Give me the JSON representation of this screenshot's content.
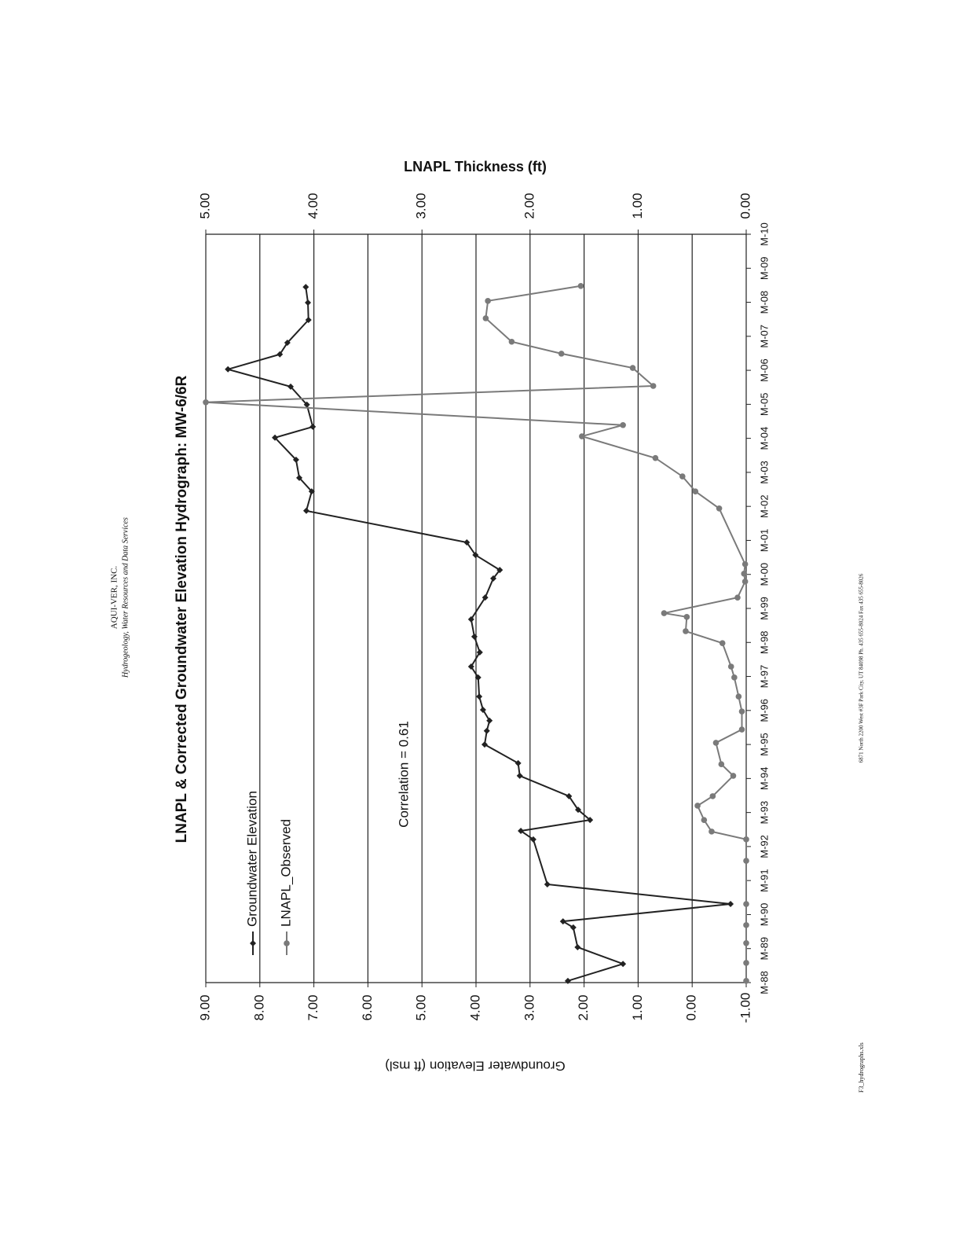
{
  "header": {
    "company": "AQUI-VER, INC.",
    "tagline": "Hydrogeology, Water Resources and Data Services"
  },
  "footer": {
    "address": "6871 North 2200 West #3F Park City, UT 84098   Ph. 435 655-8024   Fax 435 655-8026",
    "filename": "F3_hydrographs.xls"
  },
  "chart_data": {
    "type": "line",
    "title": "LNAPL & Corrected Groundwater Elevation Hydrograph: MW-6/6R",
    "y_label": "Groundwater Elevation (ft msl)",
    "y2_label": "LNAPL Thickness (ft)",
    "annotations": [
      "Correlation = 0.61"
    ],
    "xlim": [
      1988,
      2010
    ],
    "xticks": [
      {
        "value": 1988,
        "label": "M-88"
      },
      {
        "value": 1989,
        "label": "M-89"
      },
      {
        "value": 1990,
        "label": "M-90"
      },
      {
        "value": 1991,
        "label": "M-91"
      },
      {
        "value": 1992,
        "label": "M-92"
      },
      {
        "value": 1993,
        "label": "M-93"
      },
      {
        "value": 1994,
        "label": "M-94"
      },
      {
        "value": 1995,
        "label": "M-95"
      },
      {
        "value": 1996,
        "label": "M-96"
      },
      {
        "value": 1997,
        "label": "M-97"
      },
      {
        "value": 1998,
        "label": "M-98"
      },
      {
        "value": 1999,
        "label": "M-99"
      },
      {
        "value": 2000,
        "label": "M-00"
      },
      {
        "value": 2001,
        "label": "M-01"
      },
      {
        "value": 2002,
        "label": "M-02"
      },
      {
        "value": 2003,
        "label": "M-03"
      },
      {
        "value": 2004,
        "label": "M-04"
      },
      {
        "value": 2005,
        "label": "M-05"
      },
      {
        "value": 2006,
        "label": "M-06"
      },
      {
        "value": 2007,
        "label": "M-07"
      },
      {
        "value": 2008,
        "label": "M-08"
      },
      {
        "value": 2009,
        "label": "M-09"
      },
      {
        "value": 2010,
        "label": "M-10"
      }
    ],
    "ylim": [
      -1,
      9
    ],
    "yticks": [
      {
        "value": -1,
        "label": "-1.00"
      },
      {
        "value": 0,
        "label": "0.00"
      },
      {
        "value": 1,
        "label": "1.00"
      },
      {
        "value": 2,
        "label": "2.00"
      },
      {
        "value": 3,
        "label": "3.00"
      },
      {
        "value": 4,
        "label": "4.00"
      },
      {
        "value": 5,
        "label": "5.00"
      },
      {
        "value": 6,
        "label": "6.00"
      },
      {
        "value": 7,
        "label": "7.00"
      },
      {
        "value": 8,
        "label": "8.00"
      },
      {
        "value": 9,
        "label": "9.00"
      }
    ],
    "y2lim": [
      0,
      5
    ],
    "y2ticks": [
      {
        "value": 0,
        "label": "0.00"
      },
      {
        "value": 1,
        "label": "1.00"
      },
      {
        "value": 2,
        "label": "2.00"
      },
      {
        "value": 3,
        "label": "3.00"
      },
      {
        "value": 4,
        "label": "4.00"
      },
      {
        "value": 5,
        "label": "5.00"
      }
    ],
    "grid": true,
    "series": [
      {
        "name": "Groundwater Elevation",
        "color": "#222222",
        "marker": "diamond",
        "x": [
          1988.05,
          1988.55,
          1989.04,
          1989.62,
          1989.8,
          1990.31,
          1990.89,
          1992.21,
          1992.46,
          1992.78,
          1993.08,
          1993.48,
          1994.08,
          1994.45,
          1995.0,
          1995.4,
          1995.7,
          1996.02,
          1996.41,
          1996.97,
          1997.29,
          1997.71,
          1998.17,
          1998.68,
          1999.32,
          1999.88,
          2000.13,
          2000.57,
          2000.94,
          2001.87,
          2002.44,
          2002.84,
          2003.37,
          2004.02,
          2004.34,
          2004.99,
          2005.52,
          2006.03,
          2006.47,
          2006.81,
          2007.48,
          2007.99,
          2008.45
        ],
        "values": [
          2.3,
          1.28,
          2.12,
          2.2,
          2.39,
          -0.71,
          2.68,
          2.94,
          3.17,
          1.89,
          2.11,
          2.28,
          3.19,
          3.22,
          3.84,
          3.8,
          3.75,
          3.87,
          3.94,
          3.96,
          4.09,
          3.93,
          4.03,
          4.09,
          3.83,
          3.68,
          3.56,
          4.01,
          4.17,
          7.14,
          7.04,
          7.27,
          7.33,
          7.72,
          7.02,
          7.13,
          7.43,
          8.59,
          7.63,
          7.49,
          7.1,
          7.11,
          7.15
        ]
      },
      {
        "name": "LNAPL_Observed",
        "color": "#7a7a7a",
        "marker": "circle",
        "axis": "y2",
        "x": [
          1988.05,
          1988.58,
          1989.16,
          1989.69,
          1990.31,
          1991.58,
          1992.21,
          1992.44,
          1992.78,
          1993.2,
          1993.48,
          1994.08,
          1994.42,
          1995.05,
          1995.44,
          1995.97,
          1996.41,
          1996.97,
          1997.29,
          1997.98,
          1998.33,
          1998.75,
          1998.86,
          1999.32,
          1999.79,
          2000.02,
          2000.3,
          2001.94,
          2002.44,
          2002.88,
          2003.42,
          2004.06,
          2004.39,
          2005.06,
          2005.54,
          2006.07,
          2006.49,
          2006.84,
          2007.53,
          2008.04,
          2008.48
        ],
        "values": [
          0,
          0,
          0,
          0,
          0,
          0,
          0,
          0.32,
          0.39,
          0.45,
          0.31,
          0.12,
          0.23,
          0.28,
          0.04,
          0.04,
          0.07,
          0.11,
          0.14,
          0.22,
          0.56,
          0.55,
          0.76,
          0.08,
          0.01,
          0.02,
          0.01,
          0.25,
          0.47,
          0.59,
          0.84,
          1.52,
          1.14,
          5.0,
          0.86,
          1.05,
          1.71,
          2.17,
          2.41,
          2.39,
          1.53
        ]
      }
    ]
  }
}
